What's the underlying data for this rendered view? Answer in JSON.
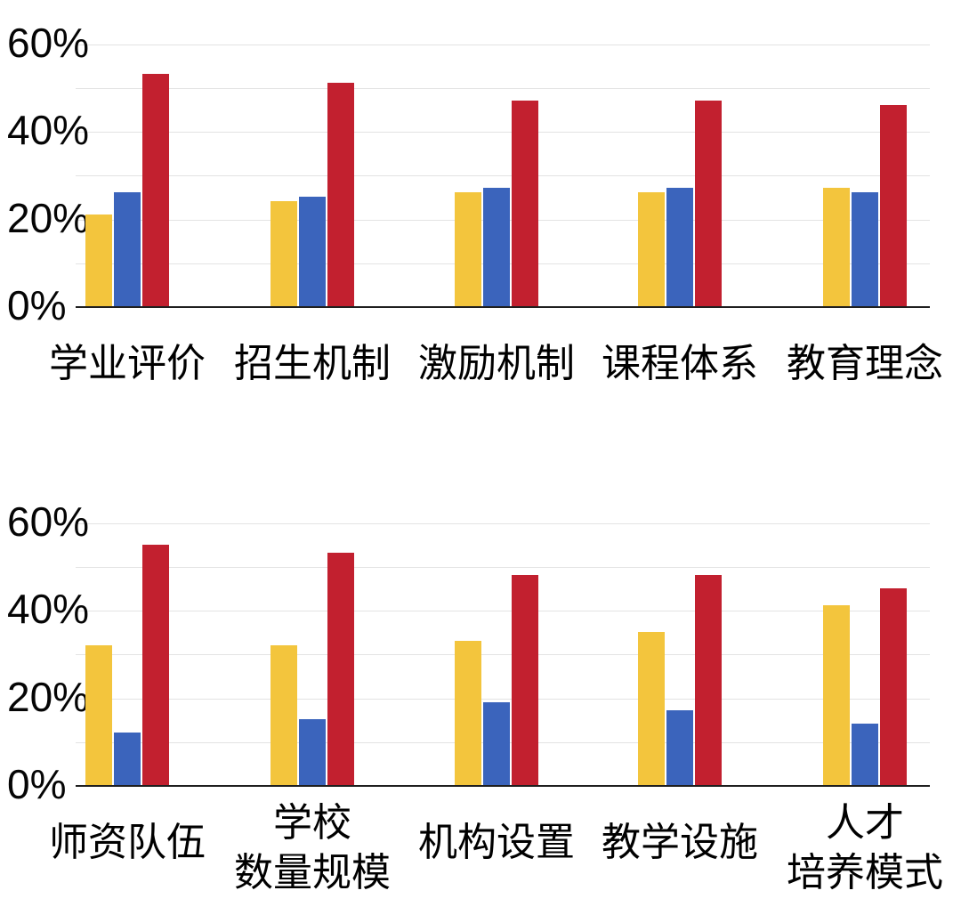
{
  "page": {
    "background": "#ffffff",
    "description_note": ""
  },
  "chart_data": [
    {
      "type": "bar",
      "title": "",
      "xlabel": "",
      "ylabel": "",
      "categories": [
        "学业评价",
        "招生机制",
        "激励机制",
        "课程体系",
        "教育理念"
      ],
      "series": [
        {
          "color": "#F3C53D",
          "values": [
            21,
            24,
            26,
            26,
            27
          ]
        },
        {
          "color": "#3B64BC",
          "values": [
            26,
            25,
            27,
            27,
            26
          ]
        },
        {
          "color": "#C2202F",
          "values": [
            53,
            51,
            47,
            47,
            46
          ]
        }
      ],
      "ylim": [
        0,
        60
      ],
      "grid_step_pct": 10,
      "yticks": [
        {
          "label": "60%",
          "value": 60
        },
        {
          "label": "40%",
          "value": 40
        },
        {
          "label": "20%",
          "value": 20
        },
        {
          "label": "0%",
          "value": 0
        }
      ],
      "grid": true,
      "legend": "none"
    },
    {
      "type": "bar",
      "title": "",
      "xlabel": "",
      "ylabel": "",
      "categories": [
        "师资队伍",
        "学校\n数量规模",
        "机构设置",
        "教学设施",
        "人才\n培养模式"
      ],
      "series": [
        {
          "color": "#F3C53D",
          "values": [
            32,
            32,
            33,
            35,
            41
          ]
        },
        {
          "color": "#3B64BC",
          "values": [
            12,
            15,
            19,
            17,
            14
          ]
        },
        {
          "color": "#C2202F",
          "values": [
            55,
            53,
            48,
            48,
            45
          ]
        }
      ],
      "ylim": [
        0,
        60
      ],
      "grid_step_pct": 10,
      "yticks": [
        {
          "label": "60%",
          "value": 60
        },
        {
          "label": "40%",
          "value": 40
        },
        {
          "label": "20%",
          "value": 20
        },
        {
          "label": "0%",
          "value": 0
        }
      ],
      "grid": true,
      "legend": "none"
    }
  ],
  "colors": {
    "bar_yellow": "#F3C53D",
    "bar_blue": "#3B64BC",
    "bar_red": "#C2202F",
    "gridline": "#e3e3e3",
    "axis": "#1f1f1f",
    "text": "#000000"
  }
}
